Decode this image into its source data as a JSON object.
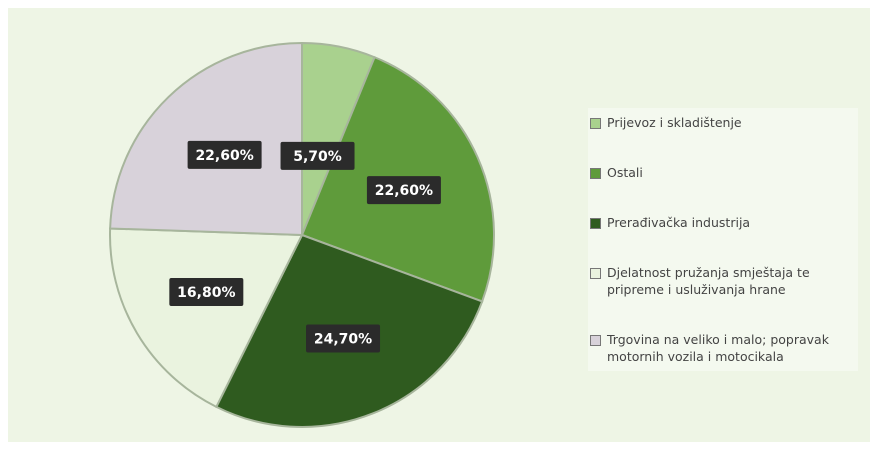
{
  "chart_data": {
    "type": "pie",
    "categories": [
      "Prijevoz i skladištenje",
      "Ostali",
      "Prerađivačka industrija",
      "Djelatnost pružanja smještaja te pripreme i usluživanja hrane",
      "Trgovina na veliko i malo; popravak motornih vozila i motocikala"
    ],
    "values": [
      5.7,
      22.6,
      24.7,
      16.8,
      22.6
    ],
    "value_labels": [
      "5,70%",
      "22,60%",
      "24,70%",
      "16,80%",
      "22,60%"
    ],
    "colors": [
      "#a9d18e",
      "#5f9b3b",
      "#2f5b1f",
      "#eaf3df",
      "#d8d2da"
    ],
    "legend": "right"
  }
}
